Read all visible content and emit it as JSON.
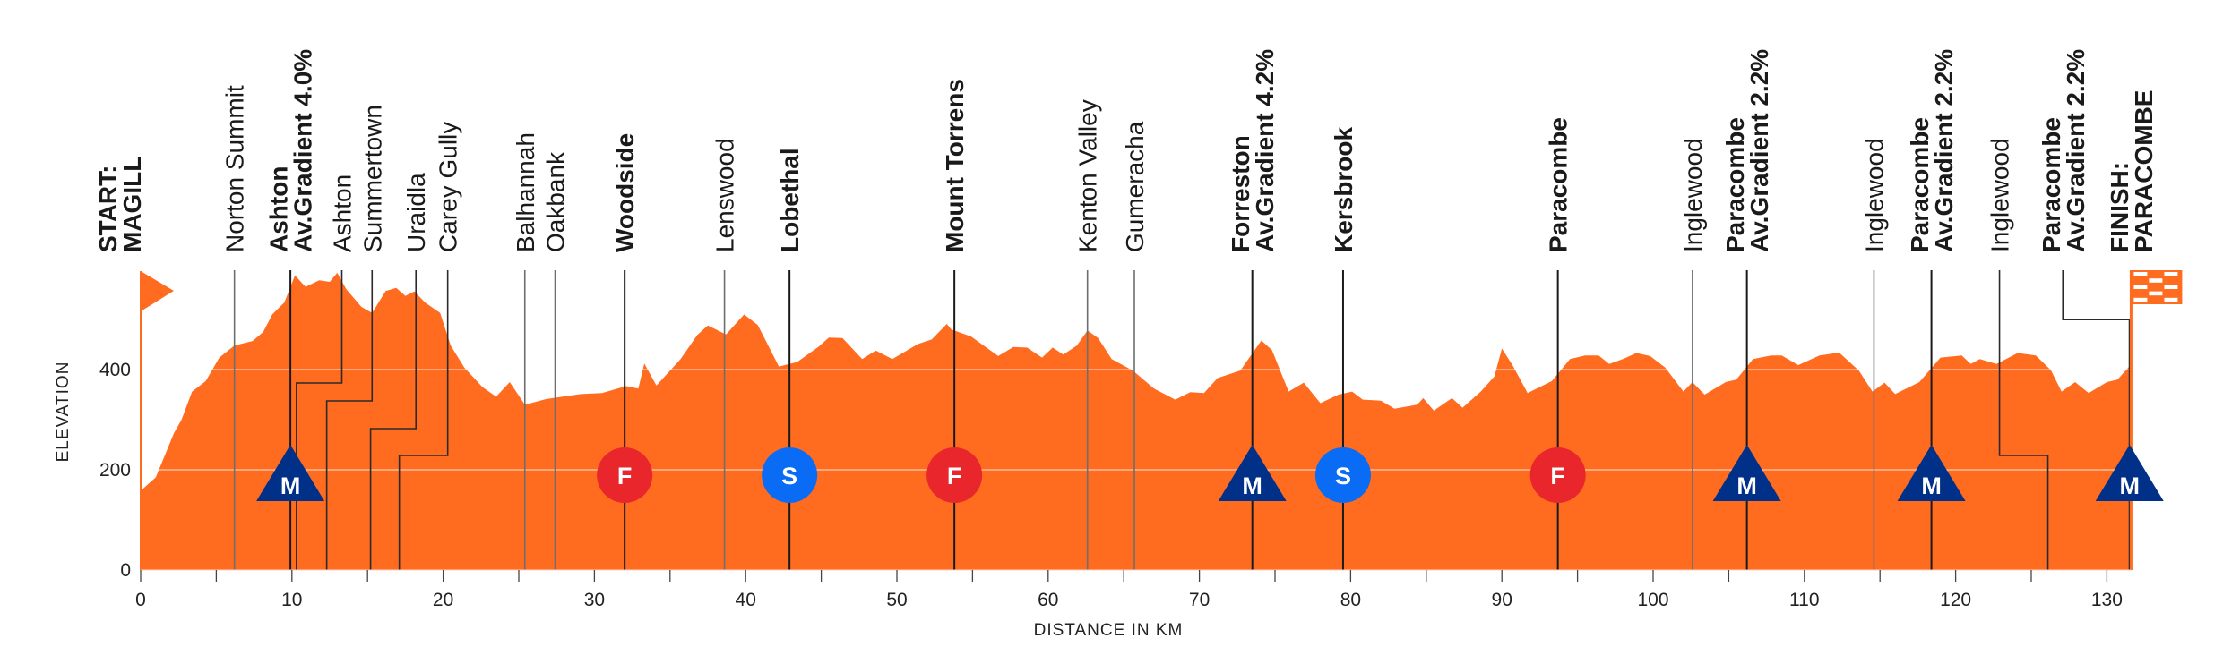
{
  "chart_data": {
    "type": "area",
    "title": "",
    "xlabel": "DISTANCE IN KM",
    "ylabel": "ELEVATION",
    "xlim": [
      0,
      135
    ],
    "ylim": [
      0,
      600
    ],
    "x_ticks": [
      0,
      10,
      20,
      30,
      40,
      50,
      60,
      70,
      80,
      90,
      100,
      110,
      120,
      130
    ],
    "x_tick_labels": [
      "0",
      "10",
      "20",
      "30",
      "40",
      "50",
      "60",
      "70",
      "80",
      "90",
      "100",
      "110",
      "120",
      "130"
    ],
    "y_ticks": [
      0,
      200,
      400
    ],
    "y_tick_labels": [
      "0",
      "200",
      "400"
    ],
    "grid": "horizontal at 200 and 400",
    "colors": {
      "profile": "#FF6B1F",
      "mountain": "#003087",
      "feed": "#E8262B",
      "sprint": "#0A6CF5",
      "line": "#222222"
    },
    "profile": {
      "km": [
        0,
        1.0,
        2.2,
        2.7,
        3.4,
        4.3,
        5.2,
        6.2,
        7.4,
        8.1,
        8.7,
        9.5,
        10.2,
        10.9,
        11.8,
        12.5,
        13.0,
        13.6,
        14.6,
        15.3,
        16.2,
        16.9,
        17.5,
        18.1,
        18.8,
        19.8,
        20.5,
        21.4,
        22.6,
        23.5,
        24.4,
        25.4,
        26.8,
        29.1,
        30.5,
        32.1,
        32.9,
        33.3,
        34.1,
        35.7,
        36.8,
        37.5,
        38.7,
        39.9,
        40.8,
        42.2,
        43.4,
        44.8,
        45.5,
        46.4,
        47.7,
        48.6,
        49.7,
        51.4,
        52.3,
        53.3,
        53.6,
        54.9,
        56.7,
        57.7,
        58.6,
        59.6,
        60.3,
        61.0,
        61.9,
        62.6,
        63.3,
        64.2,
        65.6,
        67.0,
        68.4,
        69.4,
        70.3,
        71.2,
        72.7,
        74.1,
        74.8,
        75.9,
        76.9,
        78.0,
        79.2,
        80.1,
        80.8,
        82.0,
        82.9,
        84.4,
        84.8,
        85.5,
        86.7,
        87.4,
        88.6,
        89.5,
        90.0,
        90.7,
        91.7,
        93.3,
        94.5,
        95.5,
        96.4,
        97.1,
        98.0,
        98.9,
        99.8,
        100.8,
        102.0,
        102.6,
        103.4,
        104.8,
        105.5,
        106.6,
        107.8,
        108.5,
        109.6,
        111.0,
        112.3,
        113.6,
        114.5,
        115.3,
        116.0,
        117.6,
        119.0,
        120.4,
        121.0,
        121.6,
        122.7,
        124.1,
        125.3,
        126.3,
        127.0,
        127.9,
        128.8,
        130.0,
        130.7,
        131.6
      ],
      "elevation": [
        158,
        185,
        273,
        300,
        356,
        377,
        424,
        448,
        457,
        475,
        510,
        534,
        588,
        565,
        578,
        575,
        593,
        560,
        525,
        513,
        557,
        563,
        547,
        556,
        534,
        513,
        448,
        404,
        365,
        346,
        375,
        330,
        341,
        351,
        353,
        367,
        362,
        412,
        368,
        421,
        469,
        488,
        470,
        510,
        489,
        406,
        415,
        445,
        464,
        463,
        421,
        438,
        421,
        451,
        460,
        491,
        480,
        466,
        427,
        445,
        444,
        424,
        444,
        430,
        448,
        478,
        463,
        421,
        398,
        362,
        340,
        355,
        353,
        383,
        398,
        458,
        439,
        356,
        374,
        333,
        350,
        356,
        340,
        338,
        322,
        330,
        343,
        318,
        343,
        324,
        356,
        386,
        442,
        409,
        353,
        377,
        421,
        428,
        428,
        411,
        421,
        433,
        427,
        404,
        356,
        375,
        350,
        375,
        380,
        421,
        428,
        428,
        409,
        428,
        434,
        398,
        356,
        374,
        351,
        375,
        424,
        428,
        411,
        421,
        411,
        433,
        428,
        399,
        356,
        375,
        353,
        375,
        380,
        410
      ]
    },
    "places": [
      {
        "lines": [
          "START:",
          "MAGILL"
        ],
        "km": 0,
        "major": true
      },
      {
        "lines": [
          "Norton Summit"
        ],
        "km": 6.2,
        "major": false
      },
      {
        "lines": [
          "Ashton",
          "Av.Gradient 4.0%"
        ],
        "km": 9.9,
        "major": true
      },
      {
        "lines": [
          "Ashton"
        ],
        "km": 10.3,
        "major": false
      },
      {
        "lines": [
          "Summertown"
        ],
        "km": 12.3,
        "major": false
      },
      {
        "lines": [
          "Uraidla"
        ],
        "km": 15.2,
        "major": false
      },
      {
        "lines": [
          "Carey Gully"
        ],
        "km": 17.1,
        "major": false
      },
      {
        "lines": [
          "Balhannah"
        ],
        "km": 25.4,
        "major": false
      },
      {
        "lines": [
          "Oakbank"
        ],
        "km": 27.4,
        "major": false
      },
      {
        "lines": [
          "Woodside"
        ],
        "km": 32.0,
        "major": true
      },
      {
        "lines": [
          "Lenswood"
        ],
        "km": 38.6,
        "major": false
      },
      {
        "lines": [
          "Lobethal"
        ],
        "km": 42.9,
        "major": true
      },
      {
        "lines": [
          "Mount Torrens"
        ],
        "km": 53.8,
        "major": true
      },
      {
        "lines": [
          "Kenton Valley"
        ],
        "km": 62.6,
        "major": false
      },
      {
        "lines": [
          "Gumeracha"
        ],
        "km": 65.7,
        "major": false
      },
      {
        "lines": [
          "Forreston",
          "Av.Gradient 4.2%"
        ],
        "km": 73.5,
        "major": true
      },
      {
        "lines": [
          "Kersbrook"
        ],
        "km": 79.5,
        "major": true
      },
      {
        "lines": [
          "Paracombe"
        ],
        "km": 93.7,
        "major": true
      },
      {
        "lines": [
          "Inglewood"
        ],
        "km": 102.6,
        "major": false
      },
      {
        "lines": [
          "Paracombe",
          "Av.Gradient 2.2%"
        ],
        "km": 106.2,
        "major": true
      },
      {
        "lines": [
          "Inglewood"
        ],
        "km": 114.6,
        "major": false
      },
      {
        "lines": [
          "Paracombe",
          "Av.Gradient 2.2%"
        ],
        "km": 118.4,
        "major": true
      },
      {
        "lines": [
          "Inglewood"
        ],
        "km": 126.1,
        "major": false
      },
      {
        "lines": [
          "Paracombe",
          "Av.Gradient 2.2%"
        ],
        "km": 131.5,
        "major": true
      },
      {
        "lines": [
          "FINISH:",
          "PARACOMBE"
        ],
        "km": 131.6,
        "major": true
      }
    ],
    "markers": [
      {
        "type": "mountain",
        "letter": "M",
        "km": 9.9
      },
      {
        "type": "feed",
        "letter": "F",
        "km": 32.0
      },
      {
        "type": "sprint",
        "letter": "S",
        "km": 42.9
      },
      {
        "type": "feed",
        "letter": "F",
        "km": 53.8
      },
      {
        "type": "mountain",
        "letter": "M",
        "km": 73.5
      },
      {
        "type": "sprint",
        "letter": "S",
        "km": 79.5
      },
      {
        "type": "feed",
        "letter": "F",
        "km": 93.7
      },
      {
        "type": "mountain",
        "letter": "M",
        "km": 106.2
      },
      {
        "type": "mountain",
        "letter": "M",
        "km": 118.4
      },
      {
        "type": "mountain",
        "letter": "M",
        "km": 131.5
      }
    ]
  }
}
